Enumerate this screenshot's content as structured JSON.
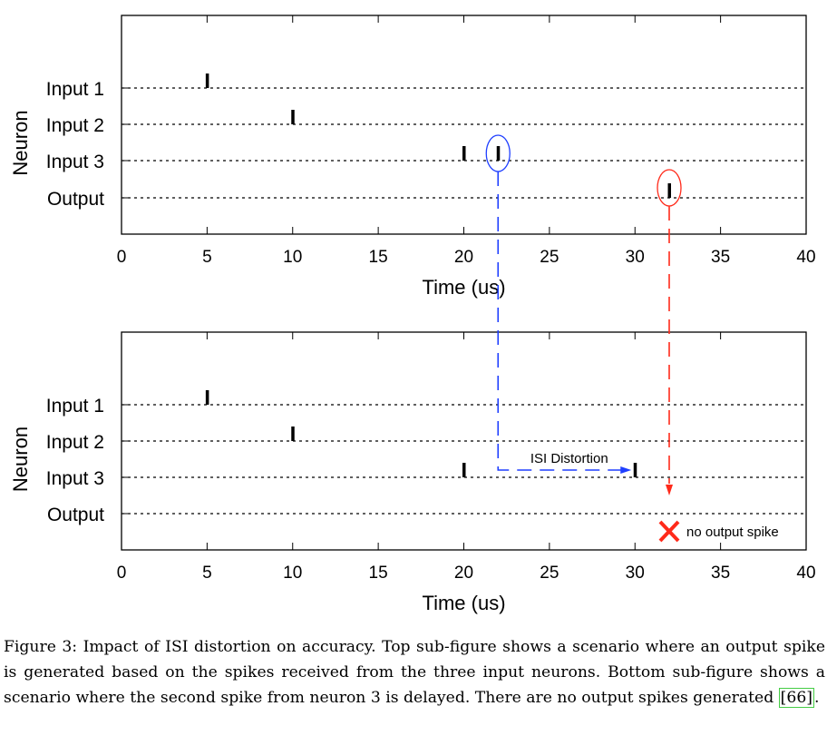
{
  "chart_data": [
    {
      "type": "scatter",
      "name": "top-subfigure",
      "xlabel": "Time (us)",
      "ylabel": "Neuron",
      "xlim": [
        0,
        40
      ],
      "xticks": [
        0,
        5,
        10,
        15,
        20,
        25,
        30,
        35,
        40
      ],
      "categories": [
        "Input 1",
        "Input 2",
        "Input 3",
        "Output"
      ],
      "spikes": [
        {
          "neuron": "Input 1",
          "times": [
            5
          ]
        },
        {
          "neuron": "Input 2",
          "times": [
            10
          ]
        },
        {
          "neuron": "Input 3",
          "times": [
            20,
            22
          ]
        },
        {
          "neuron": "Output",
          "times": [
            32
          ]
        }
      ],
      "highlights": [
        {
          "neuron": "Input 3",
          "time": 22,
          "color": "#1f3fff"
        },
        {
          "neuron": "Output",
          "time": 32,
          "color": "#ff2a1a"
        }
      ]
    },
    {
      "type": "scatter",
      "name": "bottom-subfigure",
      "xlabel": "Time (us)",
      "ylabel": "Neuron",
      "xlim": [
        0,
        40
      ],
      "xticks": [
        0,
        5,
        10,
        15,
        20,
        25,
        30,
        35,
        40
      ],
      "categories": [
        "Input 1",
        "Input 2",
        "Input 3",
        "Output"
      ],
      "spikes": [
        {
          "neuron": "Input 1",
          "times": [
            5
          ]
        },
        {
          "neuron": "Input 2",
          "times": [
            10
          ]
        },
        {
          "neuron": "Input 3",
          "times": [
            20,
            30
          ]
        },
        {
          "neuron": "Output",
          "times": []
        }
      ],
      "annotations": {
        "isi_label": "ISI Distortion",
        "isi_from": 22,
        "isi_to": 30,
        "no_output_label": "no output spike",
        "no_output_time": 32
      }
    }
  ],
  "caption": {
    "text": "Figure 3: Impact of ISI distortion on accuracy. Top sub-figure shows a scenario where an output spike is generated based on the spikes received from the three input neurons. Bottom sub-figure shows a scenario where the second spike from neuron 3 is delayed. There are no output spikes generated ",
    "citation": "[66]",
    "end": "."
  },
  "colors": {
    "blue": "#1f3fff",
    "red": "#ff2a1a",
    "cite_border": "#44cc44"
  }
}
